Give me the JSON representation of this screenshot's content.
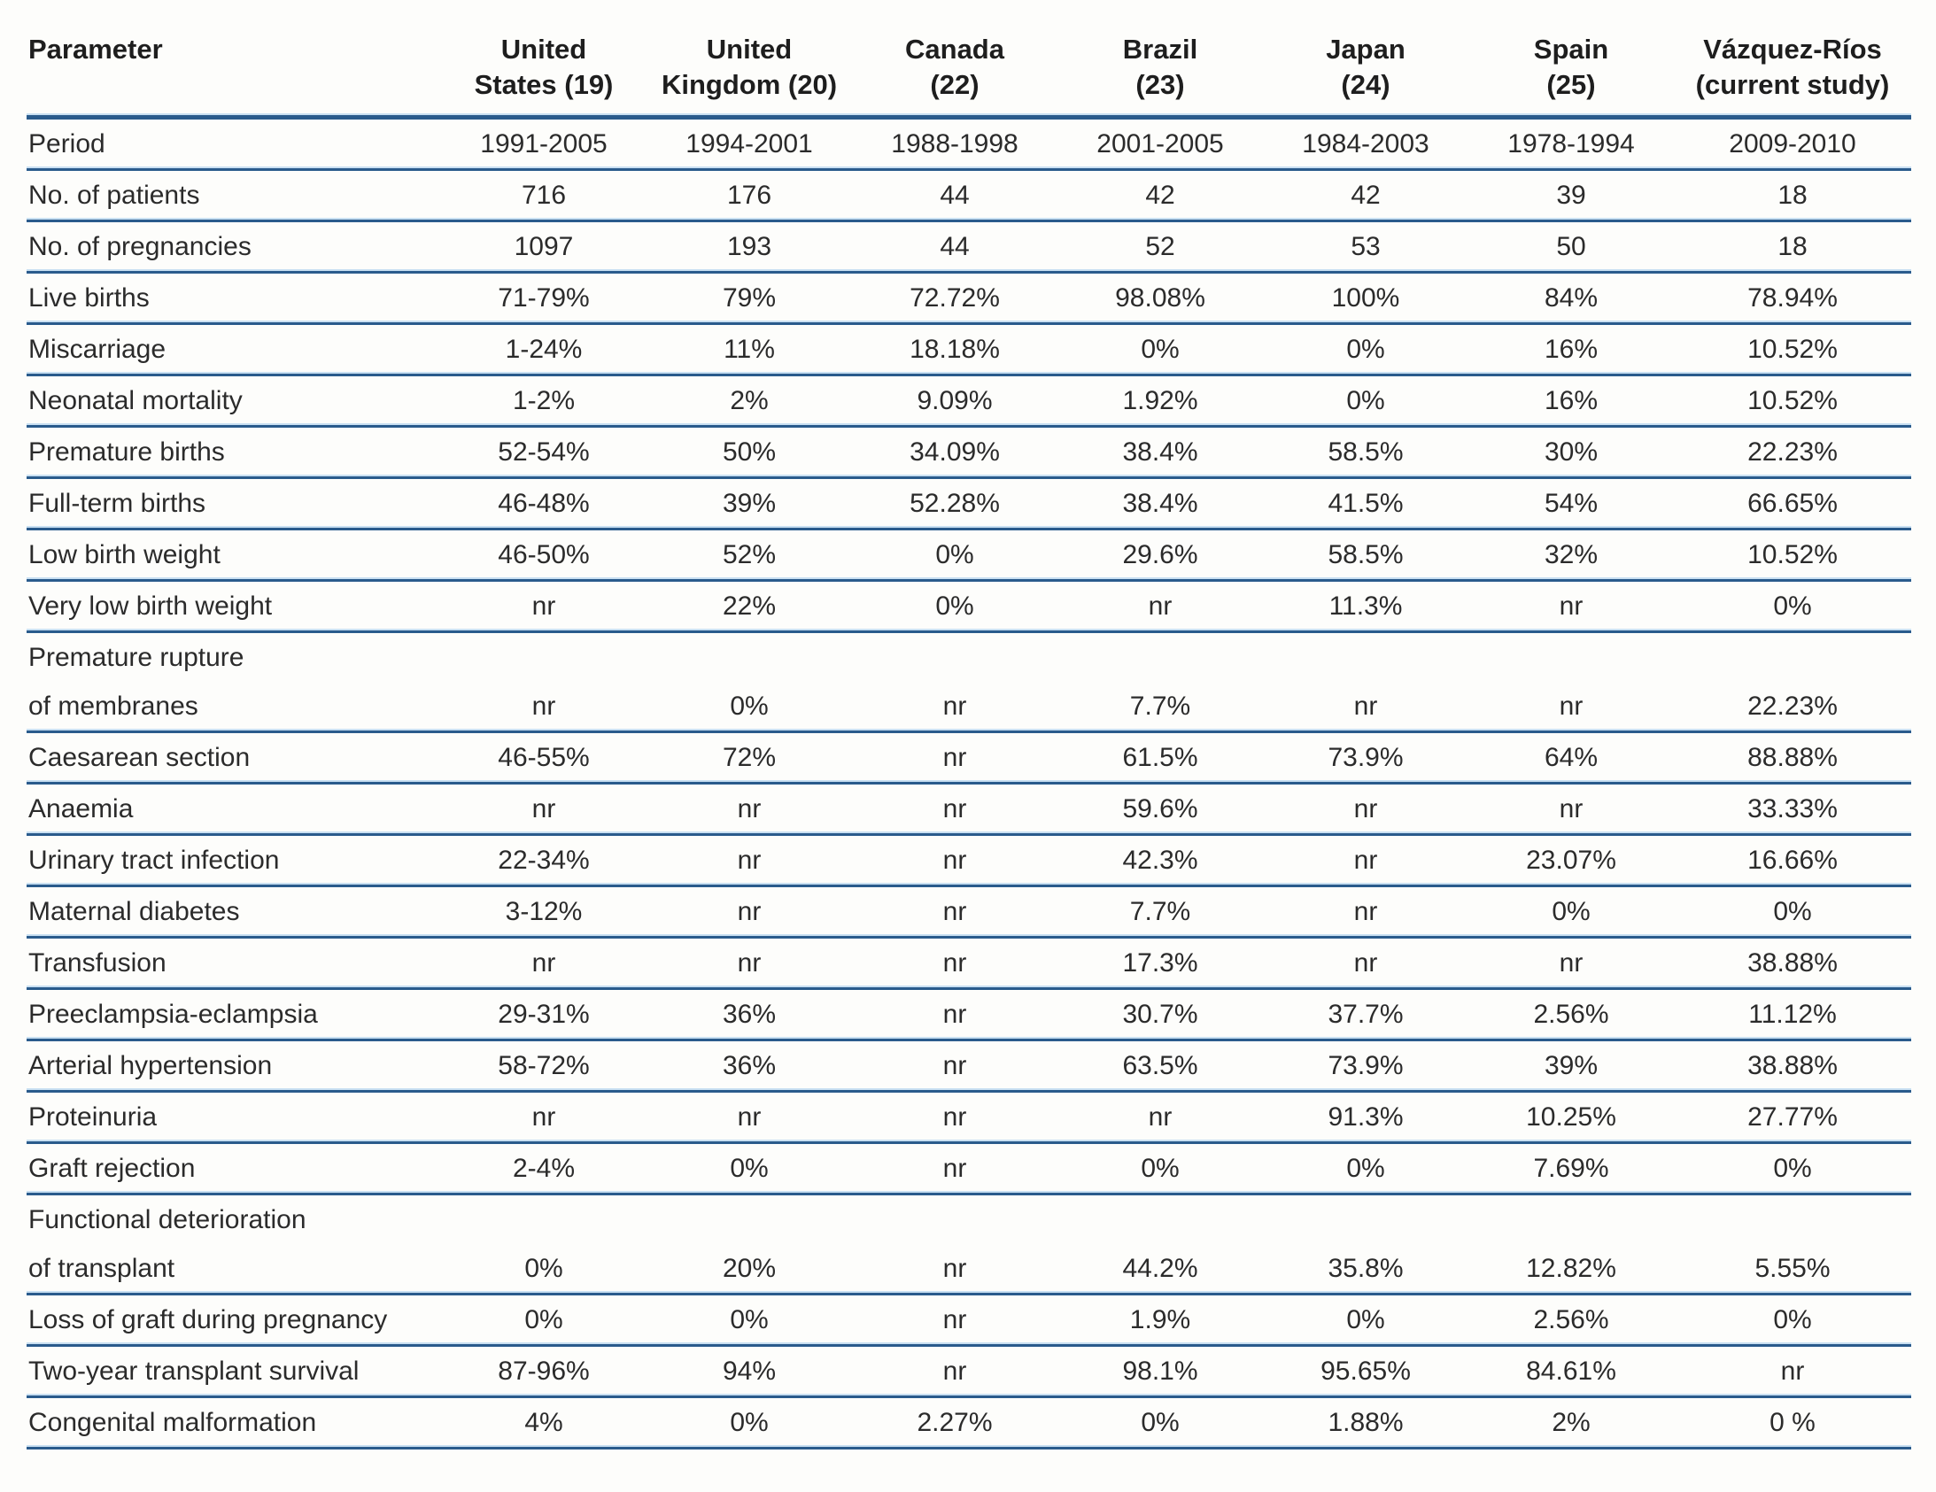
{
  "table": {
    "columns": [
      {
        "line1": "Parameter",
        "line2": ""
      },
      {
        "line1": "United",
        "line2": "States (19)"
      },
      {
        "line1": "United",
        "line2": "Kingdom (20)"
      },
      {
        "line1": "Canada",
        "line2": "(22)"
      },
      {
        "line1": "Brazil",
        "line2": "(23)"
      },
      {
        "line1": "Japan",
        "line2": "(24)"
      },
      {
        "line1": "Spain",
        "line2": "(25)"
      },
      {
        "line1": "Vázquez-Ríos",
        "line2": "(current study)"
      }
    ],
    "rows": [
      {
        "param": "Period",
        "values": [
          "1991-2005",
          "1994-2001",
          "1988-1998",
          "2001-2005",
          "1984-2003",
          "1978-1994",
          "2009-2010"
        ]
      },
      {
        "param": "No. of patients",
        "values": [
          "716",
          "176",
          "44",
          "42",
          "42",
          "39",
          "18"
        ]
      },
      {
        "param": "No. of pregnancies",
        "values": [
          "1097",
          "193",
          "44",
          "52",
          "53",
          "50",
          "18"
        ]
      },
      {
        "param": "Live births",
        "values": [
          "71-79%",
          "79%",
          "72.72%",
          "98.08%",
          "100%",
          "84%",
          "78.94%"
        ]
      },
      {
        "param": "Miscarriage",
        "values": [
          "1-24%",
          "11%",
          "18.18%",
          "0%",
          "0%",
          "16%",
          "10.52%"
        ]
      },
      {
        "param": "Neonatal mortality",
        "values": [
          "1-2%",
          "2%",
          "9.09%",
          "1.92%",
          "0%",
          "16%",
          "10.52%"
        ]
      },
      {
        "param": "Premature births",
        "values": [
          "52-54%",
          "50%",
          "34.09%",
          "38.4%",
          "58.5%",
          "30%",
          "22.23%"
        ]
      },
      {
        "param": "Full-term births",
        "values": [
          "46-48%",
          "39%",
          "52.28%",
          "38.4%",
          "41.5%",
          "54%",
          "66.65%"
        ]
      },
      {
        "param": "Low birth weight",
        "values": [
          "46-50%",
          "52%",
          "0%",
          "29.6%",
          "58.5%",
          "32%",
          "10.52%"
        ]
      },
      {
        "param": "Very low birth weight",
        "values": [
          "nr",
          "22%",
          "0%",
          "nr",
          "11.3%",
          "nr",
          "0%"
        ]
      },
      {
        "param": "Premature rupture",
        "param2": "of membranes",
        "values": [
          "nr",
          "0%",
          "nr",
          "7.7%",
          "nr",
          "nr",
          "22.23%"
        ]
      },
      {
        "param": "Caesarean section",
        "values": [
          "46-55%",
          "72%",
          "nr",
          "61.5%",
          "73.9%",
          "64%",
          "88.88%"
        ]
      },
      {
        "param": "Anaemia",
        "values": [
          "nr",
          "nr",
          "nr",
          "59.6%",
          "nr",
          "nr",
          "33.33%"
        ]
      },
      {
        "param": "Urinary tract infection",
        "values": [
          "22-34%",
          "nr",
          "nr",
          "42.3%",
          "nr",
          "23.07%",
          "16.66%"
        ]
      },
      {
        "param": "Maternal diabetes",
        "values": [
          "3-12%",
          "nr",
          "nr",
          "7.7%",
          "nr",
          "0%",
          "0%"
        ]
      },
      {
        "param": "Transfusion",
        "values": [
          "nr",
          "nr",
          "nr",
          "17.3%",
          "nr",
          "nr",
          "38.88%"
        ]
      },
      {
        "param": "Preeclampsia-eclampsia",
        "values": [
          "29-31%",
          "36%",
          "nr",
          "30.7%",
          "37.7%",
          "2.56%",
          "11.12%"
        ]
      },
      {
        "param": "Arterial hypertension",
        "values": [
          "58-72%",
          "36%",
          "nr",
          "63.5%",
          "73.9%",
          "39%",
          "38.88%"
        ]
      },
      {
        "param": "Proteinuria",
        "values": [
          "nr",
          "nr",
          "nr",
          "nr",
          "91.3%",
          "10.25%",
          "27.77%"
        ]
      },
      {
        "param": "Graft rejection",
        "values": [
          "2-4%",
          "0%",
          "nr",
          "0%",
          "0%",
          "7.69%",
          "0%"
        ]
      },
      {
        "param": "Functional deterioration",
        "param2": "of transplant",
        "values": [
          "0%",
          "20%",
          "nr",
          "44.2%",
          "35.8%",
          "12.82%",
          "5.55%"
        ]
      },
      {
        "param": "Loss of graft during pregnancy",
        "values": [
          "0%",
          "0%",
          "nr",
          "1.9%",
          "0%",
          "2.56%",
          "0%"
        ]
      },
      {
        "param": "Two-year transplant survival",
        "values": [
          "87-96%",
          "94%",
          "nr",
          "98.1%",
          "95.65%",
          "84.61%",
          "nr"
        ]
      },
      {
        "param": "Congenital malformation",
        "values": [
          "4%",
          "0%",
          "2.27%",
          "0%",
          "1.88%",
          "2%",
          "0 %"
        ]
      }
    ]
  },
  "colors": {
    "rule_dark": "#2a5b8c",
    "rule_light": "#c9e0f2",
    "text": "#2b2b2b"
  },
  "legend": {
    "nr_meaning_visible_token": "nr"
  }
}
